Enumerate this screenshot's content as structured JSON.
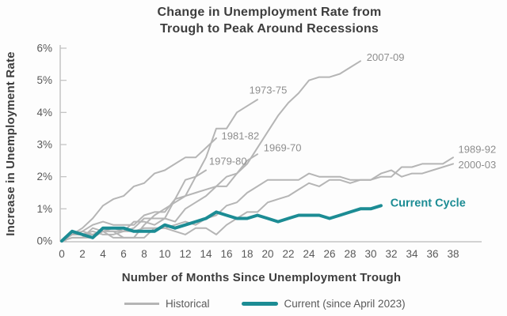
{
  "title": {
    "line1": "Change in Unemployment Rate from",
    "line2": "Trough to Peak Around Recessions"
  },
  "axes": {
    "y_title": "Increase in Unemployment Rate",
    "x_title": "Number of Months Since Unemployment Trough"
  },
  "legend": {
    "items": [
      {
        "label": "Historical"
      },
      {
        "label": "Current (since April 2023)"
      }
    ]
  },
  "colors": {
    "historical_line": "#b5b5b5",
    "current_line": "#1c8c94",
    "annotation_gray": "#8e8e8e",
    "title_text": "#3d3d3d",
    "tick_text": "#595959",
    "axis_line": "#c4c4c4"
  },
  "chart_data": {
    "type": "line",
    "title": "Change in Unemployment Rate from Trough to Peak Around Recessions",
    "xlabel": "Number of Months Since Unemployment Trough",
    "ylabel": "Increase in Unemployment Rate",
    "xlim": [
      0,
      38
    ],
    "ylim": [
      0,
      6
    ],
    "grid": false,
    "legend_position": "bottom",
    "y_ticks": [
      "0%",
      "1%",
      "2%",
      "3%",
      "4%",
      "5%",
      "6%"
    ],
    "x_ticks": [
      "0",
      "2",
      "4",
      "6",
      "8",
      "10",
      "12",
      "14",
      "16",
      "18",
      "20",
      "22",
      "24",
      "26",
      "28",
      "30",
      "32",
      "34",
      "36",
      "38"
    ],
    "x_note": "series values are percentage-point increases at each month since trough, starting at month 0",
    "series": [
      {
        "name": "1969-70",
        "kind": "historical",
        "values": [
          0,
          0.1,
          0.1,
          0.1,
          0.3,
          0.3,
          0.1,
          0.1,
          0.5,
          0.8,
          1.0,
          1.2,
          1.4,
          1.5,
          1.6,
          1.7,
          2.0,
          2.1,
          2.5,
          2.7
        ]
      },
      {
        "name": "1973-75",
        "kind": "historical",
        "values": [
          0,
          0.2,
          0.3,
          0.5,
          0.6,
          0.5,
          0.5,
          0.5,
          0.8,
          0.9,
          0.9,
          1.3,
          1.4,
          2.0,
          2.6,
          3.5,
          3.5,
          4.0,
          4.2,
          4.4
        ]
      },
      {
        "name": "1979-80",
        "kind": "historical",
        "values": [
          0,
          0.1,
          0.1,
          0.4,
          0.3,
          0.4,
          0.3,
          0.4,
          0.7,
          0.7,
          0.7,
          1.3,
          1.9,
          2.0,
          2.2
        ]
      },
      {
        "name": "1981-82",
        "kind": "historical",
        "values": [
          0,
          0.2,
          0.4,
          0.7,
          1.1,
          1.3,
          1.4,
          1.7,
          1.8,
          2.1,
          2.2,
          2.4,
          2.6,
          2.6,
          2.9,
          3.2
        ]
      },
      {
        "name": "1989-92",
        "kind": "historical",
        "values": [
          0,
          0.2,
          0.2,
          0.3,
          0.2,
          0.2,
          0.3,
          0.3,
          0.4,
          0.4,
          0.4,
          0.3,
          0.2,
          0.4,
          0.4,
          0.2,
          0.5,
          0.7,
          0.9,
          0.9,
          1.2,
          1.3,
          1.4,
          1.6,
          1.8,
          1.7,
          1.9,
          1.9,
          1.8,
          1.9,
          1.9,
          2.0,
          2.0,
          2.3,
          2.3,
          2.4,
          2.4,
          2.4,
          2.6
        ]
      },
      {
        "name": "2000-03",
        "kind": "historical",
        "values": [
          0,
          0.2,
          0.2,
          0.2,
          0.3,
          0.1,
          0.1,
          0.1,
          0.1,
          0.4,
          0.4,
          0.5,
          0.6,
          0.5,
          0.7,
          0.8,
          1.1,
          1.2,
          1.5,
          1.7,
          1.9,
          1.9,
          1.9,
          1.9,
          2.1,
          2.0,
          2.0,
          2.0,
          1.9,
          1.9,
          1.9,
          2.1,
          2.2,
          2.0,
          2.1,
          2.1,
          2.2,
          2.3,
          2.4
        ]
      },
      {
        "name": "2007-09",
        "kind": "historical",
        "values": [
          0,
          0.2,
          0.3,
          0.2,
          0.3,
          0.3,
          0.3,
          0.6,
          0.6,
          0.5,
          0.7,
          0.6,
          1.0,
          1.2,
          1.4,
          1.7,
          1.7,
          2.1,
          2.4,
          2.9,
          3.4,
          3.9,
          4.3,
          4.6,
          5.0,
          5.1,
          5.1,
          5.2,
          5.4,
          5.6
        ]
      },
      {
        "name": "Current Cycle",
        "kind": "current",
        "values": [
          0,
          0.3,
          0.2,
          0.1,
          0.4,
          0.4,
          0.4,
          0.3,
          0.3,
          0.3,
          0.5,
          0.4,
          0.5,
          0.6,
          0.7,
          0.9,
          0.8,
          0.7,
          0.7,
          0.8,
          0.7,
          0.6,
          0.7,
          0.8,
          0.8,
          0.8,
          0.7,
          0.8,
          0.9,
          1.0,
          1.0,
          1.1
        ]
      }
    ],
    "annotations": [
      {
        "text": "2007-09",
        "x": 29.6,
        "y": 5.72,
        "style": "gray"
      },
      {
        "text": "1973-75",
        "x": 18.2,
        "y": 4.7,
        "style": "gray"
      },
      {
        "text": "1981-82",
        "x": 15.5,
        "y": 3.27,
        "style": "gray"
      },
      {
        "text": "1969-70",
        "x": 19.6,
        "y": 2.9,
        "style": "gray"
      },
      {
        "text": "1979-80",
        "x": 14.3,
        "y": 2.48,
        "style": "gray"
      },
      {
        "text": "1989-92",
        "x": 38.5,
        "y": 2.85,
        "style": "gray"
      },
      {
        "text": "2000-03",
        "x": 38.5,
        "y": 2.37,
        "style": "gray"
      },
      {
        "text": "Current Cycle",
        "x": 31.9,
        "y": 1.18,
        "style": "teal"
      }
    ]
  }
}
